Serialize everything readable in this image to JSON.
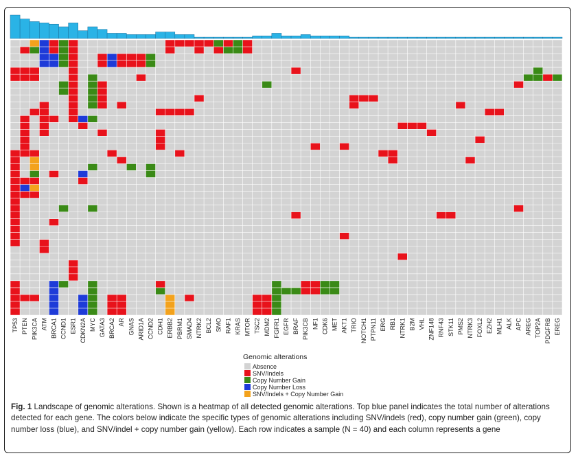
{
  "chart_data": {
    "type": "heatmap",
    "title": "",
    "genes": [
      "TP53",
      "PTEN",
      "PIK3CA",
      "ATM",
      "BRCA1",
      "CCND1",
      "ESR1",
      "CDKN2A",
      "MYC",
      "GATA3",
      "BRCA2",
      "AR",
      "GNAS",
      "ARID1A",
      "CCND2",
      "CDH1",
      "ERBB2",
      "PBRM1",
      "SMAD4",
      "NTRK2",
      "BCL2",
      "SMO",
      "RAF1",
      "KRAS",
      "MTOR",
      "TSC2",
      "MDM2",
      "FGFR1",
      "EGFR",
      "BRAF",
      "PIK3CB",
      "NF1",
      "CDK6",
      "MET",
      "AKT1",
      "TRIO",
      "NOTCH1",
      "PTPN11",
      "ERG",
      "RB1",
      "NTRK1",
      "B2M",
      "VHL",
      "ZNF148",
      "RNF43",
      "STK11",
      "PMS2",
      "NTRK3",
      "FOXL2",
      "EZH2",
      "MLH1",
      "ALK",
      "APC",
      "AREG",
      "TOP2A",
      "PDGFRB",
      "EREG"
    ],
    "gene_counts": [
      18,
      15,
      13,
      12,
      11,
      9,
      12,
      6,
      9,
      7,
      4,
      4,
      3,
      3,
      3,
      5,
      5,
      3,
      3,
      1,
      1,
      1,
      1,
      1,
      1,
      2,
      2,
      4,
      2,
      2,
      3,
      2,
      2,
      2,
      2,
      1,
      1,
      1,
      1,
      1,
      1,
      1,
      1,
      1,
      1,
      1,
      1,
      1,
      1,
      1,
      1,
      1,
      1,
      1,
      1,
      1,
      1
    ],
    "legend": {
      "title": "Genomic alterations",
      "entries": [
        {
          "label": "Absence",
          "color": "#d3d3d3"
        },
        {
          "label": "SNV/Indels",
          "color": "#e8121b"
        },
        {
          "label": "Copy Number Gain",
          "color": "#3a8a16"
        },
        {
          "label": "Copy Number Loss",
          "color": "#1e3bd8"
        },
        {
          "label": "SNV/Indels + Copy Number Gain",
          "color": "#f3a21c"
        }
      ]
    },
    "n_samples": 40,
    "bar_color": "#2ab3e6",
    "cells": [
      [
        [
          2,
          "y"
        ],
        [
          3,
          "b"
        ],
        [
          4,
          "r"
        ],
        [
          5,
          "g"
        ],
        [
          6,
          "r"
        ],
        [
          16,
          "r"
        ],
        [
          17,
          "r"
        ],
        [
          18,
          "r"
        ],
        [
          19,
          "r"
        ],
        [
          20,
          "r"
        ],
        [
          21,
          "g"
        ],
        [
          22,
          "r"
        ],
        [
          23,
          "g"
        ],
        [
          24,
          "r"
        ]
      ],
      [
        [
          1,
          "r"
        ],
        [
          2,
          "g"
        ],
        [
          3,
          "b"
        ],
        [
          4,
          "r"
        ],
        [
          5,
          "g"
        ],
        [
          6,
          "r"
        ],
        [
          16,
          "r"
        ],
        [
          19,
          "r"
        ],
        [
          21,
          "r"
        ],
        [
          22,
          "g"
        ],
        [
          23,
          "g"
        ],
        [
          24,
          "r"
        ]
      ],
      [
        [
          3,
          "b"
        ],
        [
          4,
          "b"
        ],
        [
          5,
          "g"
        ],
        [
          6,
          "r"
        ],
        [
          9,
          "r"
        ],
        [
          10,
          "b"
        ],
        [
          11,
          "r"
        ],
        [
          12,
          "r"
        ],
        [
          13,
          "r"
        ],
        [
          14,
          "g"
        ]
      ],
      [
        [
          3,
          "b"
        ],
        [
          4,
          "b"
        ],
        [
          5,
          "g"
        ],
        [
          6,
          "r"
        ],
        [
          9,
          "r"
        ],
        [
          10,
          "b"
        ],
        [
          11,
          "r"
        ],
        [
          12,
          "r"
        ],
        [
          13,
          "r"
        ],
        [
          14,
          "g"
        ]
      ],
      [
        [
          0,
          "r"
        ],
        [
          1,
          "r"
        ],
        [
          2,
          "r"
        ],
        [
          6,
          "r"
        ],
        [
          29,
          "r"
        ],
        [
          54,
          "g"
        ]
      ],
      [
        [
          0,
          "r"
        ],
        [
          1,
          "r"
        ],
        [
          2,
          "r"
        ],
        [
          6,
          "r"
        ],
        [
          8,
          "g"
        ],
        [
          13,
          "r"
        ],
        [
          53,
          "g"
        ],
        [
          54,
          "g"
        ],
        [
          55,
          "r"
        ],
        [
          56,
          "g"
        ]
      ],
      [
        [
          5,
          "g"
        ],
        [
          6,
          "r"
        ],
        [
          8,
          "g"
        ],
        [
          9,
          "r"
        ],
        [
          26,
          "g"
        ],
        [
          52,
          "r"
        ]
      ],
      [
        [
          5,
          "g"
        ],
        [
          6,
          "r"
        ],
        [
          8,
          "g"
        ],
        [
          9,
          "r"
        ]
      ],
      [
        [
          6,
          "r"
        ],
        [
          8,
          "g"
        ],
        [
          9,
          "r"
        ],
        [
          19,
          "r"
        ],
        [
          35,
          "r"
        ],
        [
          36,
          "r"
        ],
        [
          37,
          "r"
        ]
      ],
      [
        [
          3,
          "r"
        ],
        [
          6,
          "r"
        ],
        [
          8,
          "g"
        ],
        [
          9,
          "r"
        ],
        [
          11,
          "r"
        ],
        [
          35,
          "r"
        ],
        [
          46,
          "r"
        ]
      ],
      [
        [
          2,
          "r"
        ],
        [
          3,
          "r"
        ],
        [
          6,
          "r"
        ],
        [
          15,
          "r"
        ],
        [
          16,
          "r"
        ],
        [
          17,
          "r"
        ],
        [
          18,
          "r"
        ],
        [
          49,
          "r"
        ],
        [
          50,
          "r"
        ]
      ],
      [
        [
          1,
          "r"
        ],
        [
          3,
          "r"
        ],
        [
          4,
          "r"
        ],
        [
          6,
          "r"
        ],
        [
          7,
          "b"
        ],
        [
          8,
          "g"
        ]
      ],
      [
        [
          1,
          "r"
        ],
        [
          3,
          "r"
        ],
        [
          7,
          "r"
        ],
        [
          40,
          "r"
        ],
        [
          41,
          "r"
        ],
        [
          42,
          "r"
        ]
      ],
      [
        [
          1,
          "r"
        ],
        [
          3,
          "r"
        ],
        [
          9,
          "r"
        ],
        [
          15,
          "r"
        ],
        [
          43,
          "r"
        ]
      ],
      [
        [
          1,
          "r"
        ],
        [
          15,
          "r"
        ],
        [
          48,
          "r"
        ]
      ],
      [
        [
          1,
          "r"
        ],
        [
          15,
          "r"
        ],
        [
          31,
          "r"
        ],
        [
          34,
          "r"
        ]
      ],
      [
        [
          0,
          "r"
        ],
        [
          1,
          "r"
        ],
        [
          2,
          "r"
        ],
        [
          10,
          "r"
        ],
        [
          17,
          "r"
        ],
        [
          38,
          "r"
        ],
        [
          39,
          "r"
        ]
      ],
      [
        [
          0,
          "r"
        ],
        [
          2,
          "y"
        ],
        [
          11,
          "r"
        ],
        [
          39,
          "r"
        ],
        [
          47,
          "r"
        ]
      ],
      [
        [
          0,
          "r"
        ],
        [
          2,
          "y"
        ],
        [
          8,
          "g"
        ],
        [
          12,
          "g"
        ],
        [
          14,
          "g"
        ]
      ],
      [
        [
          0,
          "r"
        ],
        [
          2,
          "g"
        ],
        [
          4,
          "r"
        ],
        [
          7,
          "b"
        ],
        [
          14,
          "g"
        ]
      ],
      [
        [
          0,
          "r"
        ],
        [
          1,
          "r"
        ],
        [
          2,
          "r"
        ],
        [
          7,
          "r"
        ]
      ],
      [
        [
          0,
          "r"
        ],
        [
          1,
          "b"
        ],
        [
          2,
          "y"
        ]
      ],
      [
        [
          0,
          "r"
        ],
        [
          1,
          "r"
        ],
        [
          2,
          "r"
        ]
      ],
      [
        [
          0,
          "r"
        ]
      ],
      [
        [
          0,
          "r"
        ],
        [
          5,
          "g"
        ],
        [
          8,
          "g"
        ],
        [
          52,
          "r"
        ]
      ],
      [
        [
          0,
          "r"
        ],
        [
          29,
          "r"
        ],
        [
          44,
          "r"
        ],
        [
          45,
          "r"
        ]
      ],
      [
        [
          0,
          "r"
        ],
        [
          4,
          "r"
        ]
      ],
      [
        [
          0,
          "r"
        ]
      ],
      [
        [
          0,
          "r"
        ],
        [
          34,
          "r"
        ]
      ],
      [
        [
          0,
          "r"
        ],
        [
          3,
          "r"
        ]
      ],
      [
        [
          3,
          "r"
        ]
      ],
      [
        [
          40,
          "r"
        ]
      ],
      [
        [
          6,
          "r"
        ]
      ],
      [
        [
          6,
          "r"
        ]
      ],
      [
        [
          6,
          "r"
        ]
      ],
      [
        [
          0,
          "r"
        ],
        [
          4,
          "b"
        ],
        [
          5,
          "g"
        ],
        [
          8,
          "g"
        ],
        [
          15,
          "r"
        ],
        [
          27,
          "g"
        ],
        [
          30,
          "r"
        ],
        [
          31,
          "r"
        ],
        [
          32,
          "g"
        ],
        [
          33,
          "g"
        ]
      ],
      [
        [
          0,
          "r"
        ],
        [
          4,
          "b"
        ],
        [
          8,
          "g"
        ],
        [
          15,
          "g"
        ],
        [
          27,
          "g"
        ],
        [
          28,
          "g"
        ],
        [
          29,
          "g"
        ],
        [
          30,
          "r"
        ],
        [
          31,
          "r"
        ],
        [
          32,
          "g"
        ],
        [
          33,
          "g"
        ]
      ],
      [
        [
          0,
          "r"
        ],
        [
          1,
          "r"
        ],
        [
          2,
          "r"
        ],
        [
          4,
          "b"
        ],
        [
          7,
          "b"
        ],
        [
          8,
          "g"
        ],
        [
          10,
          "r"
        ],
        [
          11,
          "r"
        ],
        [
          16,
          "y"
        ],
        [
          18,
          "r"
        ],
        [
          25,
          "r"
        ],
        [
          26,
          "r"
        ],
        [
          27,
          "g"
        ]
      ],
      [
        [
          0,
          "r"
        ],
        [
          4,
          "b"
        ],
        [
          7,
          "b"
        ],
        [
          8,
          "g"
        ],
        [
          10,
          "r"
        ],
        [
          11,
          "r"
        ],
        [
          16,
          "y"
        ],
        [
          25,
          "r"
        ],
        [
          26,
          "r"
        ],
        [
          27,
          "g"
        ]
      ],
      [
        [
          0,
          "r"
        ],
        [
          4,
          "b"
        ],
        [
          7,
          "b"
        ],
        [
          8,
          "g"
        ],
        [
          10,
          "r"
        ],
        [
          11,
          "r"
        ],
        [
          16,
          "y"
        ],
        [
          25,
          "r"
        ],
        [
          26,
          "r"
        ],
        [
          27,
          "g"
        ]
      ]
    ]
  },
  "caption": {
    "label": "Fig. 1",
    "text": " Landscape of genomic alterations. Shown is a heatmap of all detected genomic alterations. Top blue panel indicates the total number of alterations detected for each gene. The colors below indicate the specific types of genomic alterations including SNV/indels (red), copy number gain (green), copy number loss (blue), and SNV/indel + copy number gain (yellow). Each row indicates a sample (N = 40) and each column represents a gene"
  }
}
